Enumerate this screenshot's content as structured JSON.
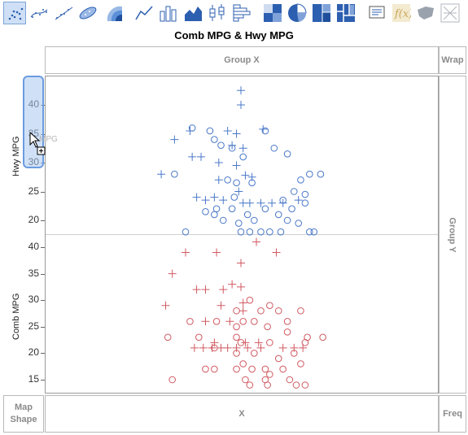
{
  "title": "Comb MPG & Hwy MPG",
  "toolbar": {
    "graph_types": [
      {
        "name": "points-icon",
        "selected": true
      },
      {
        "name": "smoother-icon",
        "selected": false
      },
      {
        "name": "line-of-fit-icon",
        "selected": false
      },
      {
        "name": "ellipse-icon",
        "selected": false
      },
      {
        "name": "contour-icon",
        "selected": false
      },
      {
        "name": "line-icon",
        "selected": false
      },
      {
        "name": "bar-icon",
        "selected": false
      },
      {
        "name": "area-icon",
        "selected": false
      },
      {
        "name": "box-plot-icon",
        "selected": false
      },
      {
        "name": "histogram-icon",
        "selected": false
      },
      {
        "name": "heatmap-icon",
        "selected": false
      },
      {
        "name": "pie-icon",
        "selected": false
      },
      {
        "name": "treemap-icon",
        "selected": false
      },
      {
        "name": "mosaic-icon",
        "selected": false
      },
      {
        "name": "caption-box-icon",
        "selected": false
      },
      {
        "name": "formula-icon",
        "selected": false
      },
      {
        "name": "map-shapes-icon",
        "selected": false
      },
      {
        "name": "parallel-icon",
        "selected": false
      }
    ]
  },
  "zones": {
    "group_x": "Group X",
    "wrap": "Wrap",
    "group_y": "Group Y",
    "x": "X",
    "map_shape": "Map\nShape",
    "freq": "Freq",
    "ghost_drag_label": "MPG"
  },
  "y_axes": {
    "top": {
      "label": "Hwy MPG",
      "ticks": [
        "40",
        "35",
        "30",
        "25",
        "20"
      ]
    },
    "bottom": {
      "label": "Comb MPG",
      "ticks": [
        "40",
        "35",
        "30",
        "25",
        "20",
        "15"
      ]
    }
  },
  "colors": {
    "top_series": "#4a78c8",
    "bottom_series": "#d05a62",
    "selection": "#6b9be0"
  },
  "chart_data": [
    {
      "type": "scatter",
      "ylabel": "Hwy MPG",
      "ylim": [
        17,
        43
      ],
      "series": [
        {
          "marker": "plus",
          "points": [
            [
              0,
              42.5
            ],
            [
              0,
              40
            ],
            [
              -0.06,
              35.5
            ],
            [
              -0.23,
              35.5
            ],
            [
              -0.3,
              34
            ],
            [
              -0.22,
              31
            ],
            [
              -0.18,
              31
            ],
            [
              -0.1,
              30
            ],
            [
              -0.04,
              33
            ],
            [
              0.01,
              32.5
            ],
            [
              -0.02,
              29.5
            ],
            [
              -0.36,
              28
            ],
            [
              0.02,
              27.8
            ],
            [
              0.05,
              27.5
            ],
            [
              -0.1,
              27
            ],
            [
              -0.01,
              25
            ],
            [
              -0.2,
              24
            ],
            [
              -0.16,
              23.5
            ],
            [
              -0.12,
              24
            ],
            [
              -0.08,
              23.5
            ],
            [
              0.01,
              23
            ],
            [
              0.04,
              23
            ],
            [
              0.09,
              23
            ],
            [
              0.14,
              23
            ],
            [
              0.19,
              23
            ],
            [
              0.26,
              23.5
            ],
            [
              0.1,
              35.8
            ],
            [
              -0.02,
              35
            ]
          ]
        },
        {
          "marker": "circle",
          "points": [
            [
              -0.22,
              36
            ],
            [
              -0.14,
              35.5
            ],
            [
              0.11,
              35.5
            ],
            [
              -0.12,
              34
            ],
            [
              -0.09,
              33
            ],
            [
              0.15,
              32.5
            ],
            [
              -0.04,
              32.5
            ],
            [
              0.21,
              31.5
            ],
            [
              0.01,
              31
            ],
            [
              0.31,
              28
            ],
            [
              0.36,
              28
            ],
            [
              -0.3,
              28
            ],
            [
              0.27,
              27
            ],
            [
              -0.06,
              27
            ],
            [
              -0.02,
              26.5
            ],
            [
              0.05,
              26.5
            ],
            [
              0.24,
              25
            ],
            [
              0.29,
              24.5
            ],
            [
              -0.03,
              24
            ],
            [
              0.19,
              23.5
            ],
            [
              0.29,
              23
            ],
            [
              -0.11,
              22
            ],
            [
              -0.04,
              22
            ],
            [
              0.11,
              22
            ],
            [
              0.23,
              22
            ],
            [
              -0.16,
              21.5
            ],
            [
              -0.12,
              21
            ],
            [
              0.03,
              21
            ],
            [
              0.17,
              21
            ],
            [
              -0.08,
              20
            ],
            [
              0.06,
              20
            ],
            [
              0.21,
              20
            ],
            [
              -0.01,
              19.5
            ],
            [
              0.26,
              19.5
            ],
            [
              -0.25,
              18
            ],
            [
              0.0,
              18
            ],
            [
              0.04,
              18
            ],
            [
              0.09,
              18
            ],
            [
              0.13,
              18
            ],
            [
              0.18,
              18
            ],
            [
              0.31,
              18
            ],
            [
              0.33,
              18
            ]
          ]
        }
      ]
    },
    {
      "type": "scatter",
      "ylabel": "Comb MPG",
      "ylim": [
        13,
        43
      ],
      "series": [
        {
          "marker": "plus",
          "points": [
            [
              0.07,
              41
            ],
            [
              -0.25,
              39
            ],
            [
              -0.11,
              39
            ],
            [
              0.16,
              39
            ],
            [
              0.0,
              37
            ],
            [
              -0.31,
              35
            ],
            [
              -0.04,
              33
            ],
            [
              0.0,
              32.5
            ],
            [
              -0.2,
              32
            ],
            [
              -0.16,
              32
            ],
            [
              -0.08,
              32
            ],
            [
              -0.34,
              29
            ],
            [
              -0.09,
              29
            ],
            [
              0.01,
              29.5
            ],
            [
              0.01,
              28
            ],
            [
              -0.16,
              26
            ],
            [
              -0.05,
              26
            ],
            [
              -0.12,
              22
            ],
            [
              0.02,
              22
            ],
            [
              0.08,
              22
            ],
            [
              -0.21,
              21
            ],
            [
              -0.17,
              21
            ],
            [
              -0.13,
              21
            ],
            [
              -0.09,
              21
            ],
            [
              -0.06,
              21
            ],
            [
              -0.02,
              21
            ],
            [
              0.03,
              21
            ],
            [
              0.09,
              21
            ],
            [
              0.19,
              21
            ],
            [
              0.24,
              21
            ],
            [
              0.28,
              21
            ]
          ]
        },
        {
          "marker": "circle",
          "points": [
            [
              0.04,
              30
            ],
            [
              0.13,
              29
            ],
            [
              -0.02,
              28
            ],
            [
              0.17,
              28
            ],
            [
              0.09,
              28
            ],
            [
              0.27,
              28
            ],
            [
              -0.23,
              26
            ],
            [
              -0.11,
              26
            ],
            [
              0.01,
              26
            ],
            [
              0.06,
              26
            ],
            [
              0.21,
              26
            ],
            [
              -0.02,
              25
            ],
            [
              0.12,
              25
            ],
            [
              0.21,
              24
            ],
            [
              0.3,
              23
            ],
            [
              0.37,
              23
            ],
            [
              -0.33,
              23
            ],
            [
              -0.19,
              23
            ],
            [
              -0.02,
              23
            ],
            [
              0.29,
              22
            ],
            [
              0.13,
              22
            ],
            [
              0.0,
              22
            ],
            [
              -0.12,
              21
            ],
            [
              -0.02,
              20
            ],
            [
              0.24,
              20
            ],
            [
              0.06,
              20
            ],
            [
              0.17,
              19
            ],
            [
              0.01,
              18
            ],
            [
              0.27,
              18
            ],
            [
              0.05,
              17
            ],
            [
              0.11,
              17
            ],
            [
              0.19,
              17
            ],
            [
              -0.02,
              17
            ],
            [
              -0.12,
              17
            ],
            [
              -0.16,
              17
            ],
            [
              0.13,
              16
            ],
            [
              0.02,
              15
            ],
            [
              0.11,
              15
            ],
            [
              0.22,
              15
            ],
            [
              -0.31,
              15
            ],
            [
              0.04,
              14
            ],
            [
              0.12,
              14
            ],
            [
              0.25,
              14
            ],
            [
              0.29,
              14
            ]
          ]
        }
      ]
    }
  ]
}
